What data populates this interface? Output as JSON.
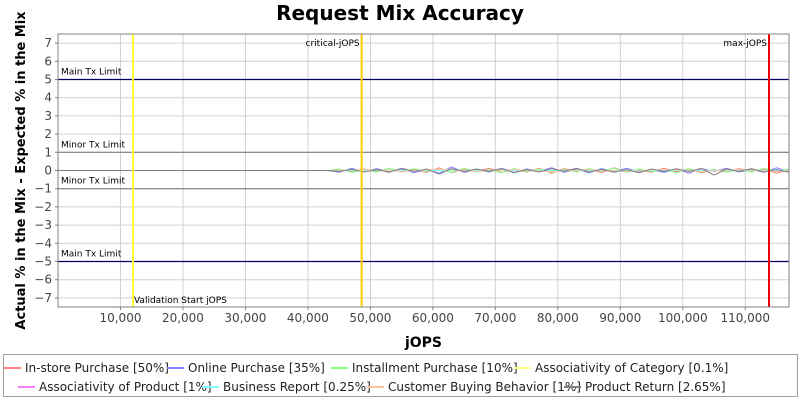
{
  "chart_data": {
    "type": "line",
    "title": "Request Mix Accuracy",
    "xlabel": "jOPS",
    "ylabel": "Actual % in the Mix - Expected % in the Mix",
    "xlim": [
      0,
      117000
    ],
    "ylim": [
      -7.5,
      7.5
    ],
    "xticks": [
      10000,
      20000,
      30000,
      40000,
      50000,
      60000,
      70000,
      80000,
      90000,
      100000,
      110000
    ],
    "xtick_labels": [
      "10,000",
      "20,000",
      "30,000",
      "40,000",
      "50,000",
      "60,000",
      "70,000",
      "80,000",
      "90,000",
      "100,000",
      "110,000"
    ],
    "yticks": [
      7,
      6,
      5,
      4,
      3,
      2,
      1,
      0,
      -1,
      -2,
      -3,
      -4,
      -5,
      -6,
      -7
    ],
    "grid": true,
    "legend_position": "bottom",
    "hlines": [
      {
        "y": 5,
        "label": "Main Tx Limit",
        "color": "#000066",
        "label_side": "above"
      },
      {
        "y": 1,
        "label": "Minor Tx Limit",
        "color": "#808080",
        "label_side": "above"
      },
      {
        "y": -1,
        "label": "Minor Tx Limit",
        "color": "#808080",
        "label_side": "above"
      },
      {
        "y": -5,
        "label": "Main Tx Limit",
        "color": "#000066",
        "label_side": "above"
      }
    ],
    "vlines": [
      {
        "x": 12000,
        "label": "Validation Start jOPS",
        "color": "#ffff33",
        "label_pos": "bottom"
      },
      {
        "x": 48600,
        "label": "critical-jOPS",
        "color": "#ffcc00",
        "label_pos": "top-left"
      },
      {
        "x": 113800,
        "label": "max-jOPS",
        "color": "#ee0000",
        "label_pos": "top-left"
      }
    ],
    "series": [
      {
        "name": "In-store Purchase [50%]",
        "color": "#ff8080",
        "x": [
          0,
          12000,
          43000,
          45000,
          47000,
          49000,
          51000,
          53000,
          55000,
          57000,
          59000,
          61000,
          63000,
          65000,
          67000,
          69000,
          71000,
          73000,
          75000,
          77000,
          79000,
          81000,
          83000,
          85000,
          87000,
          89000,
          91000,
          93000,
          95000,
          97000,
          99000,
          101000,
          103000,
          105000,
          107000,
          109000,
          111000,
          113000,
          115000,
          117000
        ],
        "values": [
          0,
          0,
          0,
          0.05,
          -0.05,
          0.08,
          -0.06,
          0.1,
          -0.08,
          0.05,
          -0.1,
          0.15,
          -0.12,
          0.08,
          -0.05,
          0.12,
          -0.1,
          0.06,
          -0.08,
          0.12,
          -0.15,
          0.1,
          -0.05,
          0.08,
          -0.12,
          0.15,
          -0.08,
          0.05,
          -0.1,
          0.12,
          -0.06,
          0.08,
          -0.12,
          0.05,
          -0.08,
          0.1,
          -0.05,
          0.08,
          -0.15,
          0.05
        ]
      },
      {
        "name": "Online Purchase [35%]",
        "color": "#8080ff",
        "x": [
          0,
          12000,
          43000,
          45000,
          47000,
          49000,
          51000,
          53000,
          55000,
          57000,
          59000,
          61000,
          63000,
          65000,
          67000,
          69000,
          71000,
          73000,
          75000,
          77000,
          79000,
          81000,
          83000,
          85000,
          87000,
          89000,
          91000,
          93000,
          95000,
          97000,
          99000,
          101000,
          103000,
          105000,
          107000,
          109000,
          111000,
          113000,
          115000,
          117000
        ],
        "values": [
          0,
          0,
          0,
          -0.1,
          0.12,
          -0.08,
          0.1,
          -0.05,
          0.08,
          -0.12,
          0.06,
          -0.15,
          0.2,
          -0.1,
          0.05,
          -0.08,
          0.12,
          -0.1,
          0.08,
          -0.05,
          0.15,
          -0.1,
          0.08,
          -0.12,
          0.1,
          -0.06,
          0.12,
          -0.08,
          0.05,
          -0.1,
          0.08,
          -0.15,
          0.1,
          -0.05,
          0.12,
          -0.08,
          0.05,
          -0.1,
          0.15,
          -0.05
        ]
      },
      {
        "name": "Installment Purchase [10%]",
        "color": "#80ff80",
        "x": [
          0,
          12000,
          43000,
          45000,
          47000,
          49000,
          51000,
          53000,
          55000,
          57000,
          59000,
          61000,
          63000,
          65000,
          67000,
          69000,
          71000,
          73000,
          75000,
          77000,
          79000,
          81000,
          83000,
          85000,
          87000,
          89000,
          91000,
          93000,
          95000,
          97000,
          99000,
          101000,
          103000,
          105000,
          107000,
          109000,
          111000,
          113000,
          115000,
          117000
        ],
        "values": [
          0,
          0,
          0,
          0.08,
          -0.1,
          0.05,
          -0.08,
          0.12,
          -0.06,
          0.1,
          -0.05,
          0.08,
          -0.1,
          0.12,
          -0.08,
          0.05,
          -0.12,
          0.1,
          -0.06,
          0.08,
          -0.1,
          0.05,
          -0.08,
          0.1,
          -0.05,
          0.12,
          -0.1,
          0.08,
          -0.06,
          0.05,
          -0.12,
          0.1,
          -0.08,
          0.06,
          -0.1,
          0.05,
          -0.08,
          0.12,
          -0.05,
          0.08
        ]
      },
      {
        "name": "Associativity of Category [0.1%]",
        "color": "#ffff80",
        "x": [
          0,
          117000
        ],
        "values": [
          0,
          0
        ]
      },
      {
        "name": "Associativity of Product [1%]",
        "color": "#ff80ff",
        "x": [
          0,
          117000
        ],
        "values": [
          0,
          0
        ]
      },
      {
        "name": "Business Report [0.25%]",
        "color": "#80ffff",
        "x": [
          0,
          117000
        ],
        "values": [
          0,
          0
        ]
      },
      {
        "name": "Customer Buying Behavior [1%]",
        "color": "#ffc0a0",
        "x": [
          0,
          43000,
          49000,
          55000,
          61000,
          67000,
          73000,
          79000,
          85000,
          91000,
          97000,
          103000,
          109000,
          115000,
          117000
        ],
        "values": [
          0,
          0,
          0.05,
          -0.05,
          0.08,
          -0.05,
          0.05,
          -0.06,
          0.05,
          -0.05,
          0.06,
          -0.05,
          0.05,
          -0.06,
          0
        ]
      },
      {
        "name": "Product Return [2.65%]",
        "color": "#808080",
        "x": [
          0,
          12000,
          43000,
          45000,
          47000,
          49000,
          51000,
          53000,
          55000,
          57000,
          59000,
          61000,
          63000,
          65000,
          67000,
          69000,
          71000,
          73000,
          75000,
          77000,
          79000,
          81000,
          83000,
          85000,
          87000,
          89000,
          91000,
          93000,
          95000,
          97000,
          99000,
          101000,
          103000,
          105000,
          107000,
          109000,
          111000,
          113000,
          115000,
          117000
        ],
        "values": [
          0,
          0,
          0,
          -0.05,
          0.06,
          -0.08,
          0.05,
          -0.1,
          0.12,
          -0.05,
          0.08,
          -0.2,
          0.1,
          -0.06,
          0.08,
          -0.05,
          0.1,
          -0.12,
          0.05,
          -0.08,
          0.1,
          -0.05,
          0.12,
          -0.08,
          0.06,
          -0.1,
          0.05,
          -0.12,
          0.08,
          -0.05,
          0.1,
          -0.06,
          0.12,
          -0.25,
          0.08,
          -0.05,
          0.1,
          -0.08,
          0.05,
          -0.1
        ]
      }
    ]
  }
}
